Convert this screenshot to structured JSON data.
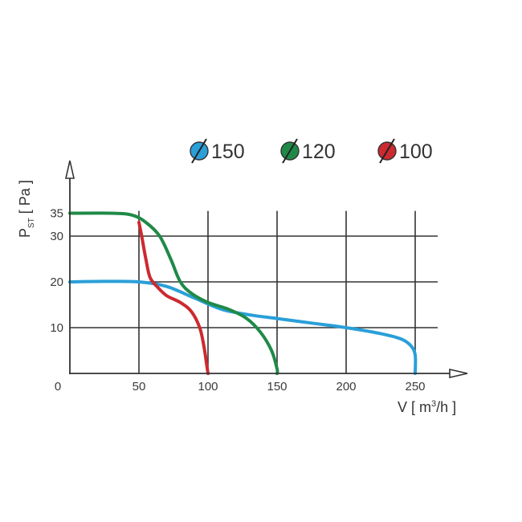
{
  "chart_data": {
    "type": "line",
    "title": "",
    "xlabel": "V [ m³/h ]",
    "ylabel": "P_ST [ Pa ]",
    "xlim": [
      0,
      270
    ],
    "ylim": [
      0,
      40
    ],
    "grid": true,
    "legend_position": "top-right",
    "x_ticks": [
      0,
      50,
      100,
      150,
      200,
      250
    ],
    "y_ticks": [
      10,
      20,
      30,
      35
    ],
    "series": [
      {
        "name": "Ø150",
        "color": "#2a9fd8",
        "points": [
          [
            0,
            20
          ],
          [
            25,
            20.1
          ],
          [
            50,
            20
          ],
          [
            70,
            19
          ],
          [
            90,
            16.5
          ],
          [
            110,
            14
          ],
          [
            130,
            12.8
          ],
          [
            150,
            12
          ],
          [
            175,
            11
          ],
          [
            200,
            10
          ],
          [
            225,
            8.7
          ],
          [
            240,
            7.5
          ],
          [
            247,
            6
          ],
          [
            250,
            4
          ],
          [
            250,
            0
          ]
        ]
      },
      {
        "name": "Ø120",
        "color": "#1f8a47",
        "points": [
          [
            0,
            35
          ],
          [
            30,
            35
          ],
          [
            45,
            34.6
          ],
          [
            55,
            33
          ],
          [
            65,
            30
          ],
          [
            73,
            25
          ],
          [
            80,
            20
          ],
          [
            88,
            17.5
          ],
          [
            100,
            15.5
          ],
          [
            115,
            14
          ],
          [
            128,
            12
          ],
          [
            138,
            9
          ],
          [
            146,
            5
          ],
          [
            150,
            1
          ],
          [
            150,
            0
          ]
        ]
      },
      {
        "name": "Ø100",
        "color": "#cc2a30",
        "points": [
          [
            50,
            33
          ],
          [
            52,
            30
          ],
          [
            55,
            25
          ],
          [
            58,
            21
          ],
          [
            63,
            19
          ],
          [
            70,
            17
          ],
          [
            80,
            15.5
          ],
          [
            88,
            13.5
          ],
          [
            94,
            10
          ],
          [
            97,
            6
          ],
          [
            99,
            2
          ],
          [
            100,
            0
          ]
        ]
      }
    ]
  },
  "legend": [
    {
      "label": "150",
      "color": "#2a9fd8"
    },
    {
      "label": "120",
      "color": "#1f8a47"
    },
    {
      "label": "100",
      "color": "#cc2a30"
    }
  ],
  "axes": {
    "x_label_main": "V [ m",
    "x_label_sup": "3",
    "x_label_tail": "/h ]",
    "y_label_main": "P",
    "y_label_sub": "ST",
    "y_label_tail": " [ Pa ]",
    "x_tick_labels": [
      "0",
      "50",
      "100",
      "150",
      "200",
      "250"
    ],
    "y_tick_labels": [
      "35",
      "30",
      "20",
      "10"
    ]
  }
}
